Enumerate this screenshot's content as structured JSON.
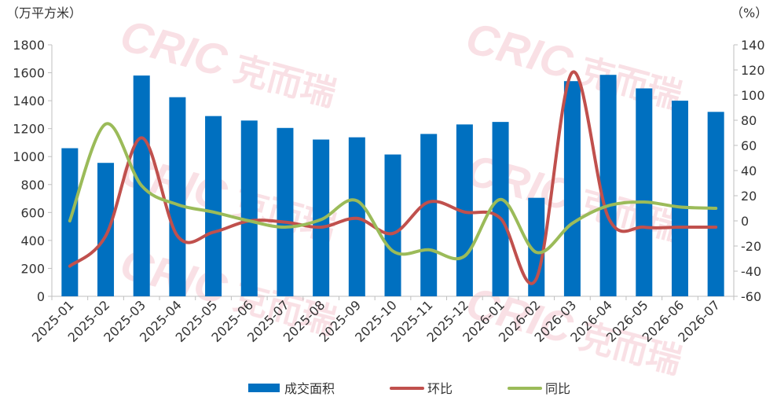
{
  "chart_data": {
    "type": "bar+line",
    "left_unit": "（万平方米）",
    "right_unit": "（%）",
    "categories": [
      "2025-01",
      "2025-02",
      "2025-03",
      "2025-04",
      "2025-05",
      "2025-06",
      "2025-07",
      "2025-08",
      "2025-09",
      "2025-10",
      "2025-11",
      "2025-12",
      "2026-01",
      "2026-02",
      "2026-03",
      "2026-04",
      "2026-05",
      "2026-06",
      "2026-07"
    ],
    "y_left": {
      "min": 0,
      "max": 1800,
      "ticks": [
        "0",
        "200",
        "400",
        "600",
        "800",
        "1000",
        "1200",
        "1400",
        "1600",
        "1800"
      ]
    },
    "y_right": {
      "min": -60,
      "max": 140,
      "ticks": [
        "-60",
        "-40",
        "-20",
        "0",
        "20",
        "40",
        "60",
        "80",
        "100",
        "120",
        "140"
      ]
    },
    "grid": false,
    "legend_position": "bottom",
    "series": [
      {
        "name": "成交面积",
        "kind": "bar",
        "axis": "left",
        "color": "#0070C0",
        "values": [
          1060,
          955,
          1580,
          1425,
          1290,
          1258,
          1205,
          1122,
          1138,
          1015,
          1162,
          1230,
          1248,
          705,
          1540,
          1585,
          1488,
          1400,
          1320
        ]
      },
      {
        "name": "环比",
        "kind": "line",
        "axis": "right",
        "color": "#C0504D",
        "values": [
          -36,
          -12,
          66,
          -12,
          -9,
          0,
          -1,
          -5,
          2,
          -10,
          15,
          7,
          2,
          -46,
          118,
          3,
          -5,
          -5,
          -5
        ]
      },
      {
        "name": "同比",
        "kind": "line",
        "axis": "right",
        "color": "#9BBB59",
        "values": [
          0,
          77,
          28,
          13,
          7,
          0,
          -5,
          1,
          16,
          -24,
          -23,
          -28,
          17,
          -25,
          -2,
          12,
          15,
          11,
          10
        ]
      }
    ]
  },
  "watermark": {
    "logo_text": "CRIC",
    "brand_text": "克而瑞",
    "color": "#f4c7cf"
  }
}
